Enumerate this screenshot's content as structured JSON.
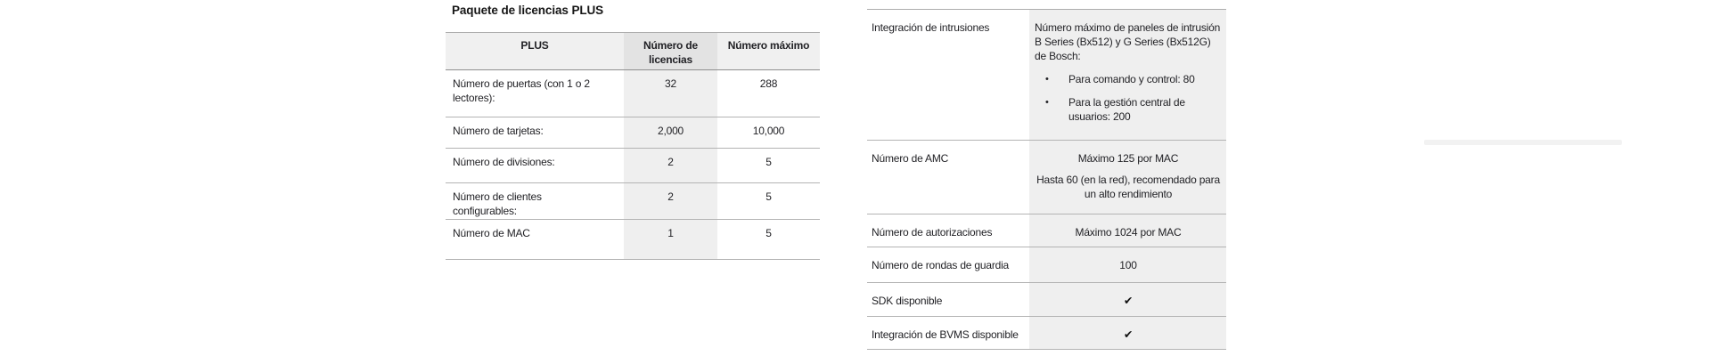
{
  "bullet_char": "•",
  "colors": {
    "page_background": "#ffffff",
    "header_cell_bg": "#f0f0f0",
    "header_mid_cell_bg": "#e3e3e3",
    "shaded_column_bg": "#efefef",
    "divider_line": "#b3b3b3",
    "header_rule": "#8e8e8e",
    "text": "#222226"
  },
  "plus_table": {
    "title": "Paquete de licencias PLUS",
    "columns": [
      "PLUS",
      "Número de licencias",
      "Número máximo"
    ],
    "rows": [
      {
        "label": "Número de puertas (con 1 o 2 lectores):",
        "licenses": "32",
        "max": "288"
      },
      {
        "label": "Número de tarjetas:",
        "licenses": "2,000",
        "max": "10,000"
      },
      {
        "label": "Número de divisiones:",
        "licenses": "2",
        "max": "5"
      },
      {
        "label": "Número de clientes configurables:",
        "licenses": "2",
        "max": "5"
      },
      {
        "label": "Número de MAC",
        "licenses": "1",
        "max": "5"
      }
    ]
  },
  "spec_table": {
    "rows": [
      {
        "label": "Integración de intrusiones",
        "value_intro": "Número máximo de paneles de intrusión B Series (Bx512) y G Series (Bx512G) de Bosch:",
        "bullets": [
          "Para comando y control: 80",
          "Para la gestión central de usuarios: 200"
        ]
      },
      {
        "label": "Número de AMC",
        "value_line1": "Máximo 125 por MAC",
        "value_line2": "Hasta 60 (en la red), recomendado para un alto rendimiento"
      },
      {
        "label": "Número de autorizaciones",
        "value": "Máximo 1024 por MAC"
      },
      {
        "label": "Número de rondas de guardia",
        "value": "100"
      },
      {
        "label": "SDK disponible",
        "value": "✔"
      },
      {
        "label": "Integración de BVMS disponible",
        "value": "✔"
      }
    ]
  }
}
